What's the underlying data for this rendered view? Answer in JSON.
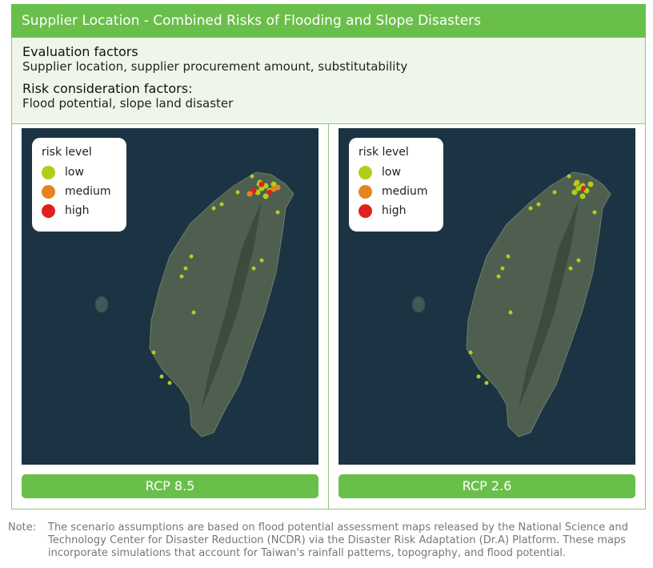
{
  "header": {
    "title": "Supplier Location - Combined Risks of Flooding and Slope Disasters"
  },
  "sections": [
    {
      "heading": "Evaluation factors",
      "text": "Supplier location, supplier procurement amount, substitutability"
    },
    {
      "heading": "Risk consideration factors:",
      "text": "Flood potential, slope land disaster"
    }
  ],
  "legend": {
    "title": "risk level",
    "items": [
      {
        "label": "low",
        "color": "#b5cc18"
      },
      {
        "label": "medium",
        "color": "#e8821e"
      },
      {
        "label": "high",
        "color": "#e0201c"
      }
    ]
  },
  "panels": [
    {
      "label": "RCP 8.5"
    },
    {
      "label": "RCP 2.6"
    }
  ],
  "note": {
    "label": "Note:",
    "text": "The scenario assumptions are based on flood potential assessment maps released by the National Science and Technology Center for Disaster Reduction (NCDR) via the Disaster Risk Adaptation (Dr.A) Platform. These maps incorporate simulations that account for Taiwan's rainfall patterns, topography, and flood potential."
  }
}
